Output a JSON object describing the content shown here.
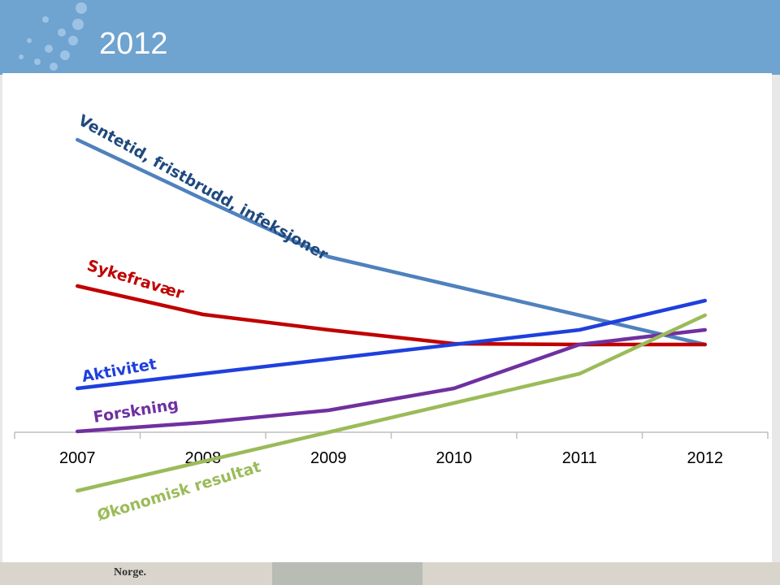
{
  "chart_data": {
    "type": "line",
    "title": "2012",
    "categories": [
      "2007",
      "2008",
      "2009",
      "2010",
      "2011",
      "2012"
    ],
    "ylim": [
      -160,
      440
    ],
    "series": [
      {
        "name": "Ventetid, fristbrudd, infeksjoner",
        "color": "#4f81bd",
        "values": [
          360,
          287,
          216,
          180,
          144,
          108
        ]
      },
      {
        "name": "Sykefravær",
        "color": "#c00000",
        "values": [
          180,
          145,
          126,
          109,
          108,
          108
        ]
      },
      {
        "name": "Aktivitet",
        "color": "#1f3fdd",
        "values": [
          54,
          72,
          90,
          108,
          126,
          162
        ]
      },
      {
        "name": "Forskning",
        "color": "#7030a0",
        "values": [
          1,
          12,
          27,
          54,
          108,
          126
        ]
      },
      {
        "name": "Økonomisk resultat",
        "color": "#9bbb59",
        "values": [
          -72,
          -36,
          0,
          36,
          72,
          144
        ]
      }
    ]
  }
}
